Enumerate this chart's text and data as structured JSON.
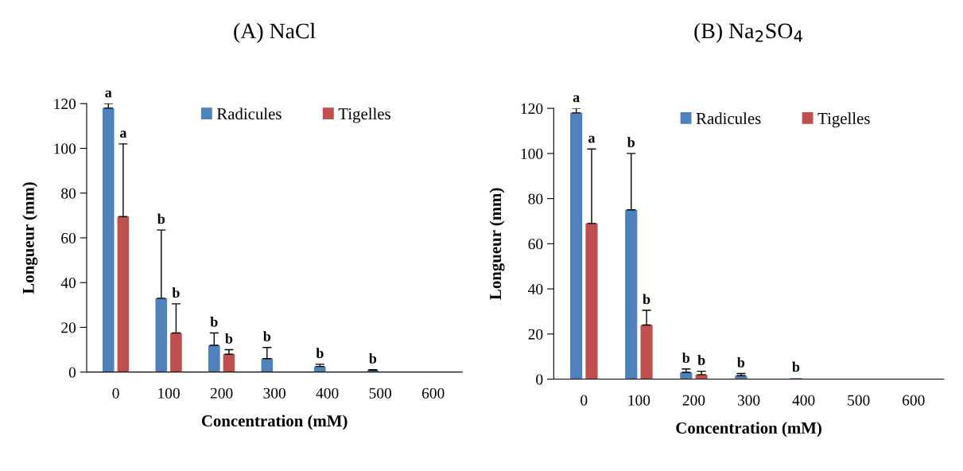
{
  "chart_data": [
    {
      "type": "bar",
      "title": "(A) NaCl",
      "xlabel": "Concentration (mM)",
      "ylabel": "Longueur (mm)",
      "categories": [
        "0",
        "100",
        "200",
        "300",
        "400",
        "500",
        "600"
      ],
      "ylim": [
        0,
        120
      ],
      "yticks": [
        0,
        20,
        40,
        60,
        80,
        100,
        120
      ],
      "grid": false,
      "legend": "top right",
      "series": [
        {
          "name": "Radicules",
          "color": "#4f81bd",
          "values": [
            118,
            33,
            12,
            6,
            2.5,
            0.8,
            null
          ],
          "errors": [
            2,
            30.5,
            5.5,
            5,
            1,
            0.3,
            null
          ]
        },
        {
          "name": "Tigelles",
          "color": "#c0504d",
          "values": [
            69.5,
            17.5,
            8,
            null,
            null,
            null,
            null
          ],
          "errors": [
            32.5,
            13,
            2,
            null,
            null,
            null,
            null
          ]
        }
      ],
      "annotations": [
        {
          "text": "a",
          "x": "0",
          "y": 120
        },
        {
          "text": "a",
          "x": "0",
          "y": 102
        },
        {
          "text": "b",
          "x": "100",
          "y": 63.5
        },
        {
          "text": "b",
          "x": "100",
          "y": 30.5
        },
        {
          "text": "b",
          "x": "200",
          "y": 17.5
        },
        {
          "text": "b",
          "x": "200",
          "y": 10
        },
        {
          "text": "b",
          "x": "300",
          "y": 11
        },
        {
          "text": "b",
          "x": "400",
          "y": 3.5
        },
        {
          "text": "b",
          "x": "500",
          "y": 1.1
        }
      ]
    },
    {
      "type": "bar",
      "title": "(B) Na$_{2}$SO$_{4}$",
      "xlabel": "Concentration (mM)",
      "ylabel": "Longueur (mm)",
      "categories": [
        "0",
        "100",
        "200",
        "300",
        "400",
        "500",
        "600"
      ],
      "ylim": [
        0,
        120
      ],
      "yticks": [
        0,
        20,
        40,
        60,
        80,
        100,
        120
      ],
      "grid": false,
      "legend": "top right",
      "series": [
        {
          "name": "Radicules",
          "color": "#4f81bd",
          "values": [
            118,
            75,
            3,
            1.5,
            0.5,
            null,
            null
          ],
          "errors": [
            2,
            25,
            1.5,
            1,
            null,
            null,
            null
          ]
        },
        {
          "name": "Tigelles",
          "color": "#c0504d",
          "values": [
            69,
            24,
            2,
            null,
            null,
            null,
            null
          ],
          "errors": [
            33,
            6.5,
            1.5,
            null,
            null,
            null,
            null
          ]
        }
      ],
      "annotations": [
        {
          "text": "a",
          "x": "0",
          "y": 120
        },
        {
          "text": "a",
          "x": "0",
          "y": 102
        },
        {
          "text": "b",
          "x": "100",
          "y": 100
        },
        {
          "text": "b",
          "x": "100",
          "y": 30.5
        },
        {
          "text": "b",
          "x": "200",
          "y": 4.5
        },
        {
          "text": "b",
          "x": "200",
          "y": 3.5
        },
        {
          "text": "b",
          "x": "300",
          "y": 2.5
        },
        {
          "text": "b",
          "x": "400",
          "y": 0.5
        }
      ]
    }
  ]
}
